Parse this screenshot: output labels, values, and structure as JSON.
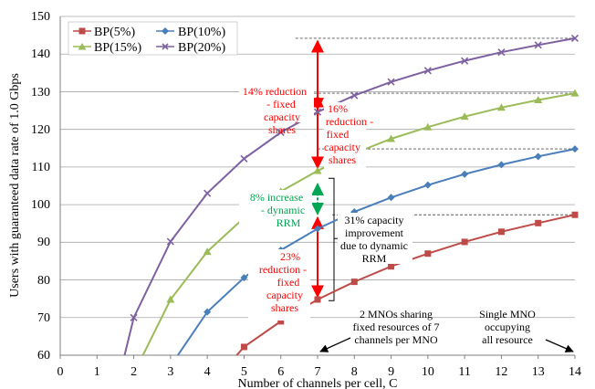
{
  "chart_data": {
    "type": "line",
    "title": "",
    "xlabel": "Number of channels per cell, C",
    "ylabel": "Users with guaranteed data rate of 1.0 Gbps",
    "xlim": [
      0,
      14
    ],
    "ylim": [
      60,
      150
    ],
    "x_ticks": [
      "0",
      "1",
      "2",
      "3",
      "4",
      "5",
      "6",
      "7",
      "8",
      "9",
      "10",
      "11",
      "12",
      "13",
      "14"
    ],
    "y_ticks": [
      "60",
      "70",
      "80",
      "90",
      "100",
      "110",
      "120",
      "130",
      "140",
      "150"
    ],
    "grid": "horizontal",
    "legend_position": "top-left",
    "series": [
      {
        "name": "BP(5%)",
        "color": "#be4b48",
        "marker": "square",
        "points": [
          [
            4.8,
            60
          ],
          [
            5,
            62.2
          ],
          [
            6,
            69
          ],
          [
            7,
            74.8
          ],
          [
            8,
            79.5
          ],
          [
            9,
            83.6
          ],
          [
            10,
            87
          ],
          [
            11,
            90.1
          ],
          [
            12,
            92.8
          ],
          [
            13,
            95.1
          ],
          [
            14,
            97.3
          ]
        ]
      },
      {
        "name": "BP(10%)",
        "color": "#4a7ebb",
        "marker": "diamond",
        "points": [
          [
            3.2,
            60
          ],
          [
            4,
            71.5
          ],
          [
            5,
            80.6
          ],
          [
            6,
            87.9
          ],
          [
            7,
            93.6
          ],
          [
            8,
            98.1
          ],
          [
            9,
            101.9
          ],
          [
            10,
            105.2
          ],
          [
            11,
            108.1
          ],
          [
            12,
            110.6
          ],
          [
            13,
            112.8
          ],
          [
            14,
            114.8
          ]
        ]
      },
      {
        "name": "BP(15%)",
        "color": "#9bbb59",
        "marker": "triangle",
        "points": [
          [
            2.25,
            60
          ],
          [
            3,
            74.8
          ],
          [
            4,
            87.5
          ],
          [
            5,
            96.5
          ],
          [
            6,
            103.5
          ],
          [
            7,
            109
          ],
          [
            8,
            113.6
          ],
          [
            9,
            117.5
          ],
          [
            10,
            120.6
          ],
          [
            11,
            123.4
          ],
          [
            12,
            125.8
          ],
          [
            13,
            127.8
          ],
          [
            14,
            129.6
          ]
        ]
      },
      {
        "name": "BP(20%)",
        "color": "#7d60a0",
        "marker": "x",
        "points": [
          [
            1.75,
            60
          ],
          [
            2,
            70
          ],
          [
            3,
            90.2
          ],
          [
            4,
            103
          ],
          [
            5,
            112.2
          ],
          [
            6,
            119.2
          ],
          [
            7,
            124.6
          ],
          [
            8,
            129
          ],
          [
            9,
            132.6
          ],
          [
            10,
            135.6
          ],
          [
            11,
            138.2
          ],
          [
            12,
            140.5
          ],
          [
            13,
            142.4
          ],
          [
            14,
            144.2
          ]
        ]
      }
    ],
    "reference_lines": [
      {
        "y": 144.2,
        "x_from": 6.4,
        "x_to": 14
      },
      {
        "y": 129.6,
        "x_from": 6.4,
        "x_to": 14
      },
      {
        "y": 114.8,
        "x_from": 7.0,
        "x_to": 14
      },
      {
        "y": 97.3,
        "x_from": 7.4,
        "x_to": 14
      }
    ],
    "annotations": [
      {
        "lines": [
          "14% reduction",
          "-  fixed",
          "capacity",
          "shares"
        ],
        "color": "#ff0000"
      },
      {
        "lines": [
          "16%",
          "reduction -",
          "fixed",
          "capacity",
          "shares"
        ],
        "color": "#ff0000"
      },
      {
        "lines": [
          "8% increase",
          "- dynamic",
          "RRM"
        ],
        "color": "#00a651"
      },
      {
        "lines": [
          "31% capacity",
          "improvement",
          "due to dynamic",
          "RRM"
        ],
        "color": "#000000"
      },
      {
        "lines": [
          "23%",
          "reduction -",
          "fixed",
          "capacity",
          "shares"
        ],
        "color": "#ff0000"
      },
      {
        "lines": [
          "2 MNOs sharing",
          "fixed resources of 7",
          "channels per MNO"
        ],
        "color": "#000000"
      },
      {
        "lines": [
          "Single MNO",
          "occupying",
          "all resource"
        ],
        "color": "#000000"
      }
    ]
  }
}
